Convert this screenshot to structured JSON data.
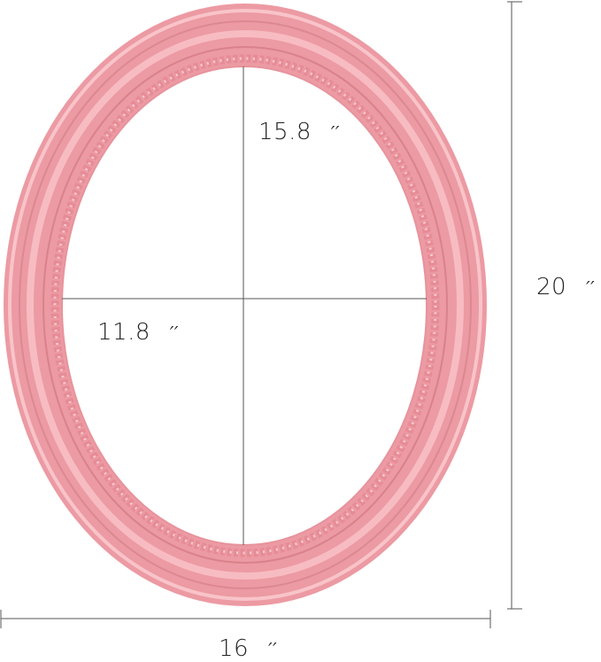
{
  "product": "oval picture frame",
  "colors": {
    "frame": "#f0a1a9",
    "frame_dark": "#d9828c",
    "frame_light": "#f8c2c7",
    "lines": "#555555"
  },
  "dimensions": {
    "inner_height": {
      "value": "15.8",
      "unit": "′′"
    },
    "inner_width": {
      "value": "11.8",
      "unit": "′′"
    },
    "outer_height": {
      "value": "20",
      "unit": "′′"
    },
    "outer_width": {
      "value": "16",
      "unit": "′′"
    }
  }
}
